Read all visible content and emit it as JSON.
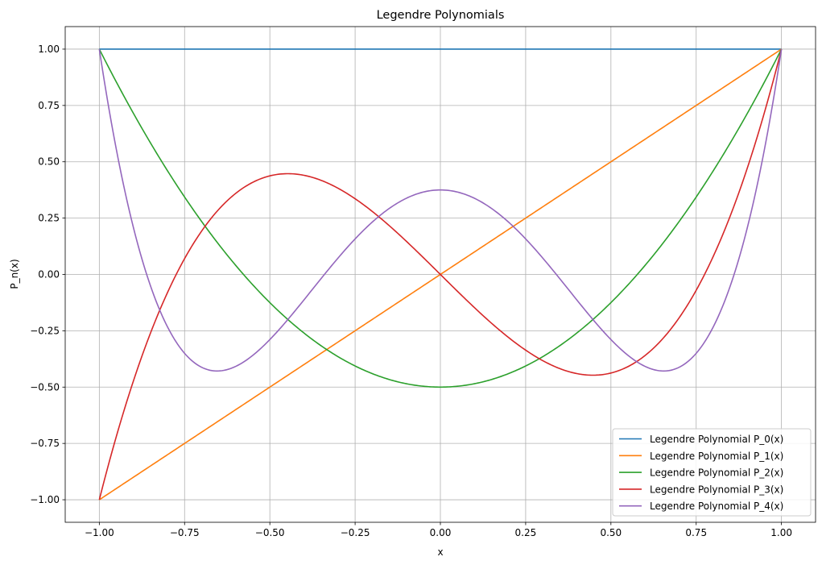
{
  "chart_data": {
    "type": "line",
    "title": "Legendre Polynomials",
    "xlabel": "x",
    "ylabel": "P_n(x)",
    "xlim": [
      -1.1,
      1.1
    ],
    "ylim": [
      -1.1,
      1.1
    ],
    "xticks": [
      -1.0,
      -0.75,
      -0.5,
      -0.25,
      0.0,
      0.25,
      0.5,
      0.75,
      1.0
    ],
    "xtick_labels": [
      "−1.00",
      "−0.75",
      "−0.50",
      "−0.25",
      "0.00",
      "0.25",
      "0.50",
      "0.75",
      "1.00"
    ],
    "yticks": [
      -1.0,
      -0.75,
      -0.5,
      -0.25,
      0.0,
      0.25,
      0.5,
      0.75,
      1.0
    ],
    "ytick_labels": [
      "−1.00",
      "−0.75",
      "−0.50",
      "−0.25",
      "0.00",
      "0.25",
      "0.50",
      "0.75",
      "1.00"
    ],
    "grid": true,
    "legend_position": "bottom-right",
    "x": [
      -1.0,
      -0.9,
      -0.8,
      -0.7,
      -0.6,
      -0.5,
      -0.4,
      -0.3,
      -0.2,
      -0.1,
      0.0,
      0.1,
      0.2,
      0.3,
      0.4,
      0.5,
      0.6,
      0.7,
      0.8,
      0.9,
      1.0
    ],
    "series": [
      {
        "name": "Legendre Polynomial P_0(x)",
        "color": "#1f77b4",
        "values": [
          1.0,
          1.0,
          1.0,
          1.0,
          1.0,
          1.0,
          1.0,
          1.0,
          1.0,
          1.0,
          1.0,
          1.0,
          1.0,
          1.0,
          1.0,
          1.0,
          1.0,
          1.0,
          1.0,
          1.0,
          1.0
        ]
      },
      {
        "name": "Legendre Polynomial P_1(x)",
        "color": "#ff7f0e",
        "values": [
          -1.0,
          -0.9,
          -0.8,
          -0.7,
          -0.6,
          -0.5,
          -0.4,
          -0.3,
          -0.2,
          -0.1,
          0.0,
          0.1,
          0.2,
          0.3,
          0.4,
          0.5,
          0.6,
          0.7,
          0.8,
          0.9,
          1.0
        ]
      },
      {
        "name": "Legendre Polynomial P_2(x)",
        "color": "#2ca02c",
        "values": [
          1.0,
          0.715,
          0.46,
          0.235,
          0.04,
          -0.125,
          -0.26,
          -0.365,
          -0.44,
          -0.485,
          -0.5,
          -0.485,
          -0.44,
          -0.365,
          -0.26,
          -0.125,
          0.04,
          0.235,
          0.46,
          0.715,
          1.0
        ]
      },
      {
        "name": "Legendre Polynomial P_3(x)",
        "color": "#d62728",
        "values": [
          -1.0,
          -0.4725,
          -0.08,
          0.1925,
          0.36,
          0.4375,
          0.44,
          0.3825,
          0.28,
          0.1475,
          0.0,
          -0.1475,
          -0.28,
          -0.3825,
          -0.44,
          -0.4375,
          -0.36,
          -0.1925,
          0.08,
          0.4725,
          1.0
        ]
      },
      {
        "name": "Legendre Polynomial P_4(x)",
        "color": "#9467bd",
        "values": [
          1.0,
          0.2079,
          -0.233,
          -0.4121,
          -0.408,
          -0.2891,
          -0.113,
          0.0729,
          0.232,
          0.3379,
          0.375,
          0.3379,
          0.232,
          0.0729,
          -0.113,
          -0.2891,
          -0.408,
          -0.4121,
          -0.233,
          0.2079,
          1.0
        ]
      }
    ]
  }
}
